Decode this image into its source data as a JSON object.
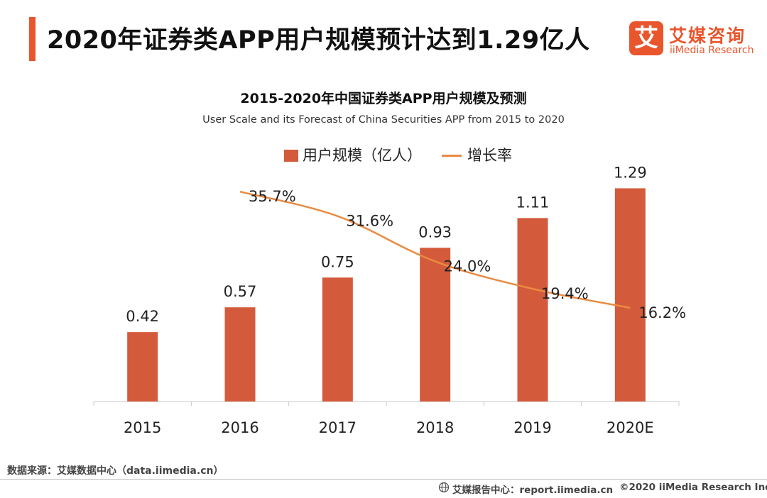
{
  "header": {
    "title": "2020年证券类APP用户规模预计达到1.29亿人",
    "logo_mark": "艾",
    "logo_cn": "艾媒咨询",
    "logo_en": "iiMedia Research"
  },
  "colors": {
    "accent": "#e9552c",
    "bar": "#d35a3b",
    "line": "#ea8a41"
  },
  "chart_data": {
    "type": "bar",
    "title": "2015-2020年中国证券类APP用户规模及预测",
    "subtitle": "User Scale and its Forecast of China Securities APP from 2015 to 2020",
    "categories": [
      "2015",
      "2016",
      "2017",
      "2018",
      "2019",
      "2020E"
    ],
    "series": [
      {
        "name": "用户规模（亿人）",
        "type": "bar",
        "values": [
          0.42,
          0.57,
          0.75,
          0.93,
          1.11,
          1.29
        ],
        "labels": [
          "0.42",
          "0.57",
          "0.75",
          "0.93",
          "1.11",
          "1.29"
        ]
      },
      {
        "name": "增长率",
        "type": "line",
        "axis": "secondary",
        "values": [
          null,
          35.7,
          31.6,
          24.0,
          19.4,
          16.2
        ],
        "labels": [
          "",
          "35.7%",
          "31.6%",
          "24.0%",
          "19.4%",
          "16.2%"
        ]
      }
    ],
    "legend_position": "top",
    "grid": false
  },
  "footer": {
    "source": "数据来源：艾媒数据中心（data.iimedia.cn）",
    "report": "艾媒报告中心：report.iimedia.cn",
    "copyright": "©2020  iiMedia Research  Inc"
  }
}
